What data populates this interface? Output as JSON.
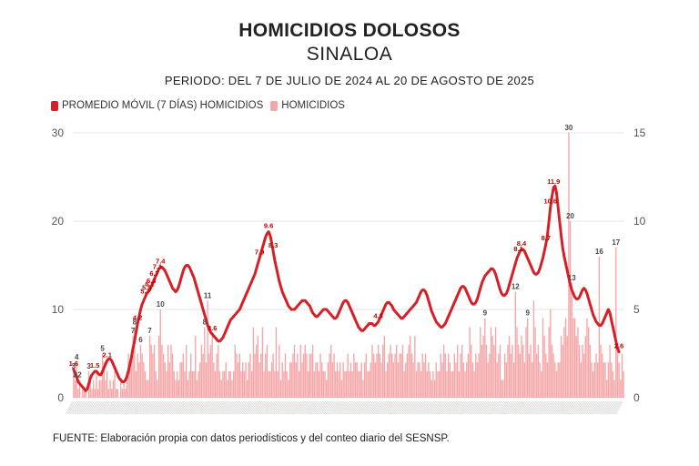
{
  "header": {
    "title": "HOMICIDIOS DOLOSOS",
    "subtitle": "SINALOA",
    "period": "PERIODO: DEL 7 DE JULIO DE 2024 AL 20 DE AGOSTO DE 2025"
  },
  "legend": {
    "avg_label": "PROMEDIO MÓVIL (7 DÍAS) HOMICIDIOS",
    "daily_label": "HOMICIDIOS"
  },
  "source": "FUENTE: Elaboración propia con datos periodísticos y del conteo diario del SESNSP.",
  "colors": {
    "avg_line": "#d61f26",
    "daily_bars": "#f4a7a9"
  },
  "chart_data": {
    "type": "bar",
    "title": "HOMICIDIOS DOLOSOS",
    "subtitle": "SINALOA",
    "x_start": "2024-07-07",
    "x_end": "2025-08-20",
    "left_axis": {
      "ylim": [
        0,
        30
      ],
      "ticks": [
        0,
        10,
        20,
        30
      ]
    },
    "right_axis": {
      "ylim": [
        0,
        15
      ],
      "ticks": [
        0,
        5,
        10,
        15
      ]
    },
    "legend_position": "top-left",
    "grid": true,
    "series": [
      {
        "name": "HOMICIDIOS",
        "type": "bar",
        "axis": "left",
        "values": [
          3,
          2,
          4,
          1,
          2,
          0,
          1,
          1,
          1,
          0,
          3,
          2,
          1,
          2,
          1,
          3,
          1,
          2,
          2,
          5,
          4,
          2,
          3,
          1,
          2,
          1,
          2,
          3,
          1,
          1,
          0,
          2,
          1,
          2,
          1,
          3,
          5,
          4,
          5,
          7,
          8,
          3,
          5,
          4,
          6,
          5,
          4,
          3,
          2,
          2,
          7,
          6,
          5,
          6,
          3,
          2,
          7,
          10,
          6,
          5,
          4,
          3,
          6,
          4,
          6,
          5,
          3,
          2,
          3,
          2,
          4,
          4,
          5,
          3,
          6,
          2,
          3,
          5,
          3,
          3,
          7,
          2,
          3,
          4,
          6,
          5,
          8,
          4,
          11,
          5,
          6,
          7,
          4,
          3,
          5,
          6,
          3,
          2,
          3,
          3,
          4,
          2,
          3,
          3,
          2,
          3,
          6,
          5,
          4,
          5,
          3,
          4,
          3,
          4,
          2,
          4,
          5,
          3,
          8,
          5,
          6,
          7,
          4,
          5,
          8,
          3,
          5,
          6,
          3,
          3,
          4,
          5,
          3,
          8,
          3,
          6,
          2,
          4,
          3,
          5,
          3,
          2,
          4,
          4,
          5,
          6,
          4,
          5,
          3,
          6,
          4,
          5,
          6,
          5,
          3,
          5,
          5,
          6,
          3,
          4,
          4,
          3,
          5,
          4,
          3,
          3,
          2,
          4,
          5,
          6,
          4,
          5,
          3,
          4,
          3,
          4,
          2,
          4,
          3,
          3,
          5,
          3,
          4,
          3,
          5,
          4,
          4,
          3,
          3,
          4,
          2,
          4,
          5,
          3,
          3,
          4,
          6,
          5,
          4,
          5,
          6,
          5,
          4,
          6,
          7,
          3,
          4,
          5,
          6,
          5,
          4,
          5,
          6,
          4,
          5,
          5,
          6,
          3,
          4,
          5,
          6,
          7,
          5,
          4,
          7,
          3,
          4,
          4,
          3,
          5,
          4,
          5,
          3,
          4,
          3,
          2,
          3,
          2,
          4,
          3,
          3,
          5,
          4,
          6,
          5,
          3,
          5,
          4,
          3,
          3,
          5,
          4,
          6,
          3,
          5,
          6,
          4,
          3,
          4,
          5,
          8,
          6,
          4,
          3,
          5,
          4,
          5,
          8,
          6,
          7,
          9,
          6,
          4,
          5,
          8,
          7,
          6,
          8,
          4,
          5,
          6,
          2,
          2,
          5,
          4,
          6,
          7,
          5,
          6,
          4,
          12,
          8,
          6,
          5,
          7,
          6,
          4,
          8,
          9,
          5,
          6,
          4,
          11,
          8,
          5,
          6,
          4,
          3,
          9,
          7,
          5,
          4,
          8,
          10,
          6,
          5,
          4,
          3,
          4,
          4,
          7,
          6,
          8,
          9,
          7,
          30,
          20,
          13,
          9,
          9,
          7,
          8,
          6,
          4,
          6,
          5,
          7,
          9,
          8,
          6,
          4,
          3,
          4,
          5,
          4,
          16,
          6,
          5,
          4,
          4,
          2,
          4,
          6,
          4,
          3,
          2,
          17,
          6,
          4,
          2,
          5,
          3
        ]
      },
      {
        "name": "PROMEDIO MÓVIL (7 DÍAS) HOMICIDIOS",
        "type": "line",
        "axis": "right",
        "values": [
          1.6,
          1.4,
          1.2,
          0.9,
          0.8,
          0.7,
          0.6,
          0.5,
          0.4,
          0.5,
          0.8,
          1.1,
          1.3,
          1.4,
          1.5,
          1.5,
          1.4,
          1.3,
          1.3,
          1.5,
          1.7,
          1.9,
          2.1,
          2.2,
          2.2,
          2.1,
          1.9,
          1.7,
          1.5,
          1.3,
          1.1,
          1.0,
          0.9,
          0.9,
          1.0,
          1.2,
          1.5,
          1.9,
          2.3,
          2.8,
          3.2,
          3.7,
          4.2,
          4.6,
          5.0,
          5.3,
          5.5,
          5.7,
          5.9,
          6.0,
          6.1,
          6.3,
          6.5,
          6.7,
          6.9,
          7.1,
          7.3,
          7.4,
          7.4,
          7.3,
          7.2,
          7.0,
          6.8,
          6.6,
          6.4,
          6.2,
          6.1,
          6.0,
          6.1,
          6.3,
          6.6,
          6.9,
          7.2,
          7.4,
          7.5,
          7.5,
          7.4,
          7.2,
          7.0,
          6.8,
          6.5,
          6.2,
          5.9,
          5.6,
          5.3,
          5.0,
          4.7,
          4.4,
          4.1,
          3.9,
          3.7,
          3.6,
          3.5,
          3.4,
          3.3,
          3.2,
          3.2,
          3.3,
          3.4,
          3.6,
          3.8,
          4.0,
          4.2,
          4.4,
          4.5,
          4.6,
          4.7,
          4.8,
          4.9,
          5.0,
          5.2,
          5.4,
          5.6,
          5.8,
          6.0,
          6.2,
          6.4,
          6.6,
          6.8,
          7.0,
          7.3,
          7.6,
          7.9,
          8.2,
          8.5,
          8.8,
          9.1,
          9.3,
          9.4,
          9.2,
          8.8,
          8.3,
          7.8,
          7.4,
          7.0,
          6.6,
          6.3,
          6.0,
          5.8,
          5.6,
          5.4,
          5.2,
          5.1,
          5.0,
          5.0,
          5.0,
          5.1,
          5.2,
          5.3,
          5.4,
          5.5,
          5.5,
          5.5,
          5.4,
          5.3,
          5.2,
          5.0,
          4.8,
          4.7,
          4.6,
          4.6,
          4.7,
          4.8,
          4.9,
          5.0,
          5.0,
          5.0,
          4.9,
          4.8,
          4.7,
          4.6,
          4.5,
          4.5,
          4.6,
          4.8,
          5.0,
          5.2,
          5.4,
          5.5,
          5.5,
          5.4,
          5.2,
          5.0,
          4.8,
          4.6,
          4.4,
          4.2,
          4.0,
          3.9,
          3.8,
          3.8,
          3.9,
          4.0,
          4.1,
          4.2,
          4.2,
          4.2,
          4.1,
          4.1,
          4.2,
          4.3,
          4.5,
          4.7,
          4.9,
          5.1,
          5.3,
          5.4,
          5.4,
          5.3,
          5.2,
          5.0,
          4.9,
          4.8,
          4.7,
          4.6,
          4.5,
          4.5,
          4.6,
          4.7,
          4.8,
          4.9,
          5.0,
          5.1,
          5.2,
          5.3,
          5.4,
          5.6,
          5.8,
          6.0,
          6.1,
          6.1,
          6.0,
          5.8,
          5.5,
          5.2,
          4.9,
          4.7,
          4.5,
          4.3,
          4.2,
          4.1,
          4.0,
          4.0,
          4.1,
          4.2,
          4.4,
          4.6,
          4.8,
          5.0,
          5.2,
          5.4,
          5.6,
          5.8,
          6.0,
          6.2,
          6.3,
          6.3,
          6.2,
          6.0,
          5.8,
          5.6,
          5.4,
          5.3,
          5.3,
          5.4,
          5.6,
          5.9,
          6.2,
          6.5,
          6.7,
          6.9,
          7.0,
          7.1,
          7.2,
          7.3,
          7.3,
          7.2,
          7.0,
          6.7,
          6.4,
          6.1,
          5.9,
          5.8,
          5.8,
          5.9,
          6.1,
          6.4,
          6.7,
          7.0,
          7.3,
          7.6,
          7.9,
          8.1,
          8.3,
          8.4,
          8.4,
          8.3,
          8.1,
          7.9,
          7.7,
          7.5,
          7.3,
          7.1,
          7.0,
          7.0,
          7.1,
          7.3,
          7.6,
          7.9,
          8.3,
          8.7,
          9.2,
          10.0,
          10.8,
          11.4,
          11.9,
          12.0,
          11.6,
          10.8,
          10.0,
          9.2,
          8.5,
          8.0,
          7.6,
          7.2,
          6.8,
          6.4,
          6.1,
          5.9,
          5.7,
          5.6,
          5.6,
          5.7,
          5.9,
          6.1,
          6.2,
          6.1,
          5.9,
          5.6,
          5.3,
          5.0,
          4.7,
          4.5,
          4.3,
          4.2,
          4.1,
          4.1,
          4.2,
          4.4,
          4.6,
          4.8,
          5.0,
          4.8,
          4.4,
          4.0,
          3.6,
          3.2,
          2.8,
          2.6
        ]
      }
    ],
    "avg_labels": [
      "1.6",
      "1.5",
      "2.1",
      "4.2",
      "5.9",
      "6.7",
      "7.4",
      "7.1",
      "8.1",
      "9.6",
      "6.3",
      "4.3",
      "6.1",
      "7.9",
      "8.4",
      "11.9",
      "10.6",
      "8.7",
      "8.3",
      "5.7",
      "3.6",
      "2.6"
    ],
    "bar_labels": [
      "3",
      "2",
      "4",
      "3",
      "2",
      "5",
      "8",
      "7",
      "10",
      "6",
      "14",
      "11",
      "7",
      "8",
      "20",
      "16",
      "12",
      "9",
      "30",
      "13",
      "9",
      "16",
      "17"
    ]
  }
}
